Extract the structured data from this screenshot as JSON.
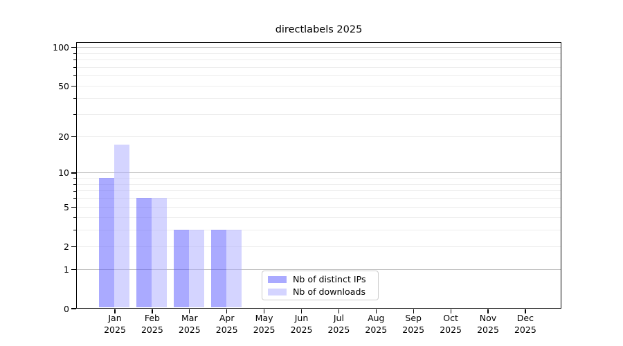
{
  "chart_data": {
    "type": "bar",
    "title": "directlabels 2025",
    "year": "2025",
    "categories": [
      "Jan",
      "Feb",
      "Mar",
      "Apr",
      "May",
      "Jun",
      "Jul",
      "Aug",
      "Sep",
      "Oct",
      "Nov",
      "Dec"
    ],
    "series": [
      {
        "name": "Nb of distinct IPs",
        "color": "#5555ff",
        "fill_alpha": 0.5,
        "values": [
          9,
          6,
          3,
          3,
          0,
          0,
          0,
          0,
          0,
          0,
          0,
          0
        ]
      },
      {
        "name": "Nb of downloads",
        "color": "#aaaaff",
        "fill_alpha": 0.5,
        "values": [
          17,
          6,
          3,
          3,
          0,
          0,
          0,
          0,
          0,
          0,
          0,
          0
        ]
      }
    ],
    "yscale": "log1p",
    "ylim": [
      0,
      110
    ],
    "ytick_labels": [
      0,
      1,
      2,
      5,
      10,
      20,
      50,
      100
    ],
    "grid_major": [
      1,
      10,
      100
    ],
    "grid_minor": [
      2,
      3,
      4,
      5,
      6,
      7,
      8,
      9,
      20,
      30,
      40,
      50,
      60,
      70,
      80,
      90
    ],
    "ytick_minor": [
      3,
      4,
      6,
      7,
      8,
      9,
      30,
      40,
      60,
      70,
      80,
      90
    ],
    "grid": true,
    "legend_position": "lower-center",
    "xlabel": "",
    "ylabel": ""
  }
}
